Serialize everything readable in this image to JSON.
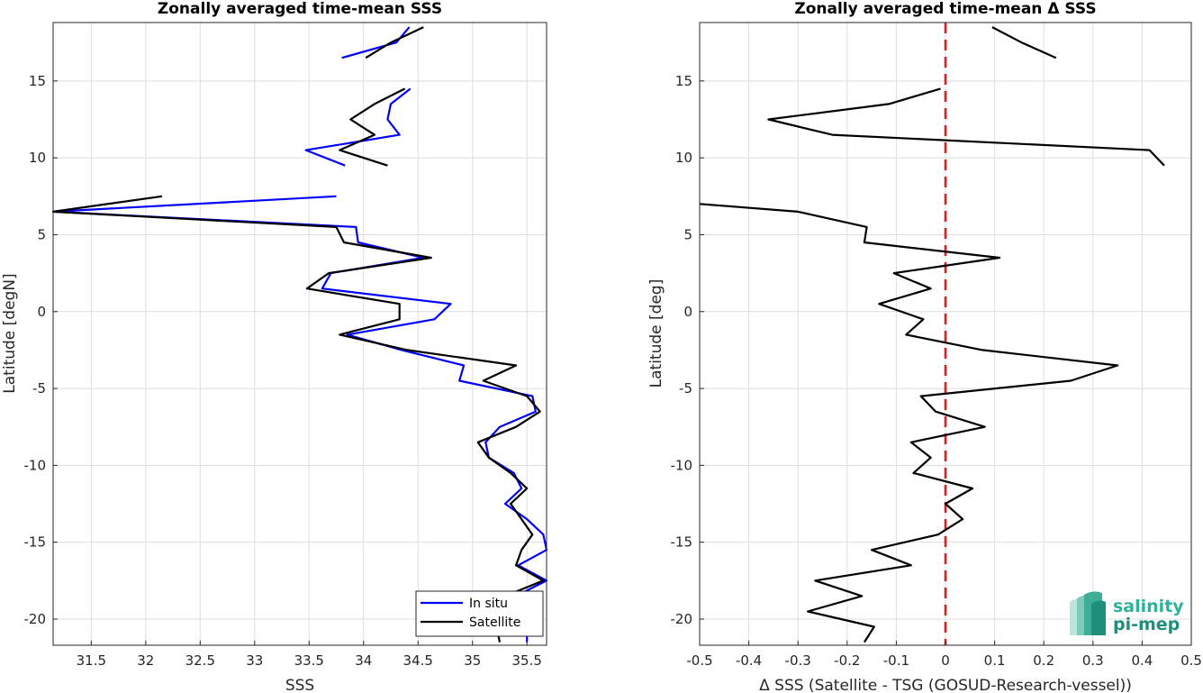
{
  "chart_data": [
    {
      "type": "line",
      "title": "Zonally averaged time-mean SSS",
      "xlabel": "SSS",
      "ylabel": "Latitude [degN]",
      "xlim": [
        31.15,
        35.68
      ],
      "ylim": [
        -21.7,
        18.8
      ],
      "xticks": [
        31.5,
        32,
        32.5,
        33,
        33.5,
        34,
        34.5,
        35,
        35.5
      ],
      "xtick_labels": [
        "31.5",
        "32",
        "32.5",
        "33",
        "33.5",
        "34",
        "34.5",
        "35",
        "35.5"
      ],
      "yticks": [
        -20,
        -15,
        -10,
        -5,
        0,
        5,
        10,
        15
      ],
      "ytick_labels": [
        "-20",
        "-15",
        "-10",
        "-5",
        "0",
        "5",
        "10",
        "15"
      ],
      "grid": true,
      "legend": "bottom-right",
      "series": [
        {
          "name": "In situ",
          "color": "#0000ff",
          "segments": [
            [
              [
                33.8,
                16.5
              ],
              [
                34.3,
                17.5
              ],
              [
                34.42,
                18.5
              ]
            ],
            [
              [
                33.83,
                9.5
              ],
              [
                33.47,
                10.5
              ],
              [
                34.33,
                11.5
              ],
              [
                34.22,
                12.5
              ],
              [
                34.25,
                13.5
              ],
              [
                34.43,
                14.5
              ]
            ],
            [
              [
                33.75,
                7.5
              ],
              [
                31.15,
                6.5
              ],
              [
                33.93,
                5.5
              ],
              [
                33.95,
                4.5
              ],
              [
                34.55,
                3.5
              ],
              [
                33.7,
                2.5
              ],
              [
                33.62,
                1.5
              ],
              [
                34.8,
                0.5
              ],
              [
                34.65,
                -0.5
              ],
              [
                33.85,
                -1.5
              ],
              [
                34.35,
                -2.5
              ],
              [
                34.92,
                -3.5
              ],
              [
                34.88,
                -4.5
              ],
              [
                35.55,
                -5.5
              ],
              [
                35.58,
                -6.5
              ],
              [
                35.25,
                -7.5
              ],
              [
                35.12,
                -8.5
              ],
              [
                35.15,
                -9.5
              ],
              [
                35.38,
                -10.5
              ],
              [
                35.45,
                -11.5
              ],
              [
                35.3,
                -12.5
              ],
              [
                35.5,
                -13.5
              ],
              [
                35.65,
                -14.5
              ],
              [
                35.68,
                -15.5
              ],
              [
                35.42,
                -16.5
              ],
              [
                35.68,
                -17.5
              ],
              [
                35.4,
                -18.5
              ],
              [
                35.45,
                -19.5
              ],
              [
                35.5,
                -20.5
              ],
              [
                35.5,
                -21.5
              ]
            ]
          ]
        },
        {
          "name": "Satellite",
          "color": "#000000",
          "segments": [
            [
              [
                34.02,
                16.5
              ],
              [
                34.25,
                17.5
              ],
              [
                34.55,
                18.5
              ]
            ],
            [
              [
                34.22,
                9.5
              ],
              [
                33.78,
                10.5
              ],
              [
                34.1,
                11.5
              ],
              [
                33.88,
                12.5
              ],
              [
                34.1,
                13.5
              ],
              [
                34.38,
                14.5
              ]
            ],
            [
              [
                32.15,
                7.5
              ],
              [
                31.15,
                6.5
              ],
              [
                33.75,
                5.5
              ],
              [
                33.82,
                4.5
              ],
              [
                34.62,
                3.5
              ],
              [
                33.68,
                2.5
              ],
              [
                33.48,
                1.5
              ],
              [
                34.33,
                0.5
              ],
              [
                34.33,
                -0.5
              ],
              [
                33.78,
                -1.5
              ],
              [
                34.4,
                -2.5
              ],
              [
                35.4,
                -3.5
              ],
              [
                35.1,
                -4.5
              ],
              [
                35.5,
                -5.5
              ],
              [
                35.62,
                -6.5
              ],
              [
                35.4,
                -7.5
              ],
              [
                35.05,
                -8.5
              ],
              [
                35.15,
                -9.5
              ],
              [
                35.35,
                -10.5
              ],
              [
                35.5,
                -11.5
              ],
              [
                35.35,
                -12.5
              ],
              [
                35.45,
                -13.5
              ],
              [
                35.55,
                -14.5
              ],
              [
                35.45,
                -15.5
              ],
              [
                35.4,
                -16.5
              ],
              [
                35.65,
                -17.5
              ],
              [
                35.3,
                -18.5
              ],
              [
                35.25,
                -19.5
              ],
              [
                35.22,
                -20.5
              ],
              [
                35.25,
                -21.5
              ]
            ]
          ]
        }
      ]
    },
    {
      "type": "line",
      "title": "Zonally averaged time-mean Δ SSS",
      "xlabel": "Δ SSS (Satellite - TSG (GOSUD-Research-vessel))",
      "ylabel": "Latitude [deg]",
      "xlim": [
        -0.5,
        0.5
      ],
      "ylim": [
        -21.7,
        18.8
      ],
      "xticks": [
        -0.5,
        -0.4,
        -0.3,
        -0.2,
        -0.1,
        0,
        0.1,
        0.2,
        0.3,
        0.4,
        0.5
      ],
      "xtick_labels": [
        "-0.5",
        "-0.4",
        "-0.3",
        "-0.2",
        "-0.1",
        "0",
        "0.1",
        "0.2",
        "0.3",
        "0.4",
        "0.5"
      ],
      "yticks": [
        -20,
        -15,
        -10,
        -5,
        0,
        5,
        10,
        15
      ],
      "ytick_labels": [
        "-20",
        "-15",
        "-10",
        "-5",
        "0",
        "5",
        "10",
        "15"
      ],
      "grid": true,
      "zero_line_color": "#e41a1c",
      "series": [
        {
          "color": "#000000",
          "segments": [
            [
              [
                0.225,
                16.5
              ],
              [
                0.155,
                17.5
              ],
              [
                0.095,
                18.5
              ]
            ],
            [
              [
                0.445,
                9.5
              ],
              [
                0.415,
                10.5
              ],
              [
                -0.23,
                11.5
              ],
              [
                -0.36,
                12.5
              ],
              [
                -0.115,
                13.5
              ],
              [
                -0.01,
                14.5
              ]
            ],
            [
              [
                -0.5,
                7.0
              ],
              [
                -0.3,
                6.5
              ],
              [
                -0.16,
                5.5
              ],
              [
                -0.165,
                4.5
              ],
              [
                0.11,
                3.5
              ],
              [
                -0.105,
                2.5
              ],
              [
                -0.03,
                1.5
              ],
              [
                -0.135,
                0.5
              ],
              [
                -0.045,
                -0.5
              ],
              [
                -0.08,
                -1.5
              ],
              [
                0.075,
                -2.5
              ],
              [
                0.35,
                -3.5
              ],
              [
                0.255,
                -4.5
              ],
              [
                -0.05,
                -5.5
              ],
              [
                -0.02,
                -6.5
              ],
              [
                0.08,
                -7.5
              ],
              [
                -0.07,
                -8.5
              ],
              [
                -0.03,
                -9.5
              ],
              [
                -0.065,
                -10.5
              ],
              [
                0.055,
                -11.5
              ],
              [
                0.0,
                -12.5
              ],
              [
                0.035,
                -13.5
              ],
              [
                -0.015,
                -14.5
              ],
              [
                -0.15,
                -15.5
              ],
              [
                -0.07,
                -16.5
              ],
              [
                -0.265,
                -17.5
              ],
              [
                -0.17,
                -18.5
              ],
              [
                -0.28,
                -19.5
              ],
              [
                -0.145,
                -20.5
              ],
              [
                -0.165,
                -21.5
              ]
            ]
          ]
        }
      ]
    }
  ],
  "legend": {
    "items": [
      {
        "label": "In situ",
        "color": "#0000ff"
      },
      {
        "label": "Satellite",
        "color": "#000000"
      }
    ]
  },
  "logo": {
    "line1": "salinity",
    "line2": "pi-mep",
    "color_light": "#2bb39b",
    "color_dark": "#1f8f7c"
  }
}
